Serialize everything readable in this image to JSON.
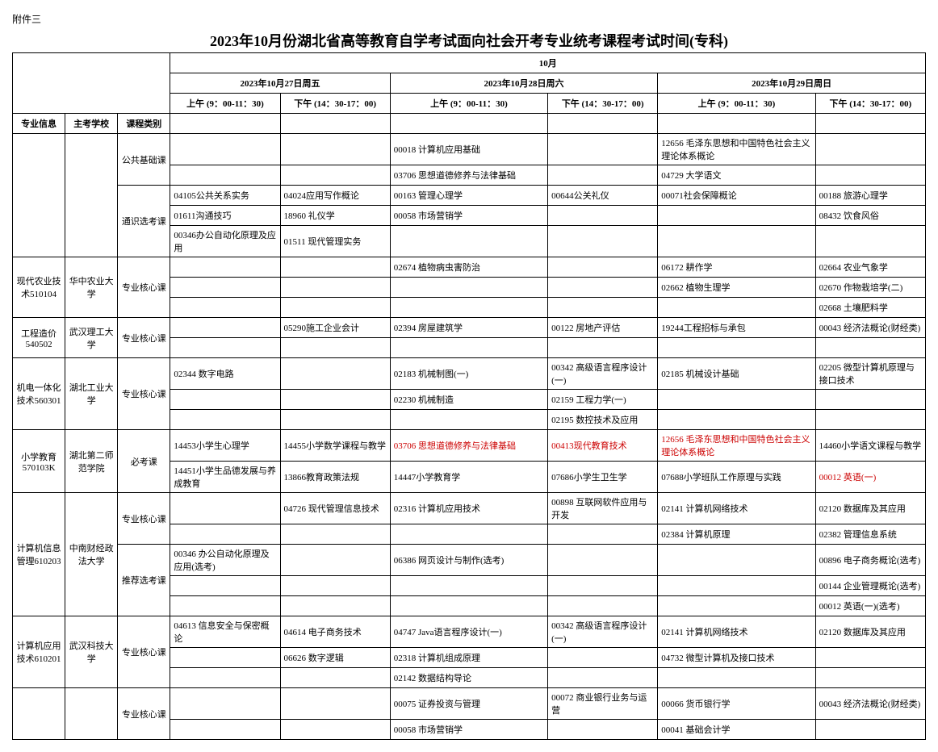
{
  "attachment_label": "附件三",
  "title": "2023年10月份湖北省高等教育自学考试面向社会开考专业统考课程考试时间(专科)",
  "month_header": "10月",
  "col_headers": {
    "major_info": "专业信息",
    "school": "主考学校",
    "course_type": "课程类别",
    "day1": "2023年10月27日周五",
    "day2": "2023年10月28日周六",
    "day3": "2023年10月29日周日",
    "am": "上午 (9：00-11：30)",
    "pm": "下午 (14：30-17：00)"
  },
  "course_types": {
    "public_basic": "公共基础课",
    "general_elective": "通识选考课",
    "major_core": "专业核心课",
    "required": "必考课",
    "rec_elective": "推荐选考课"
  },
  "majors": {
    "agri": {
      "code": "现代农业技术510104",
      "school": "华中农业大学"
    },
    "cost": {
      "code": "工程造价540502",
      "school": "武汉理工大学"
    },
    "mech": {
      "code": "机电一体化技术560301",
      "school": "湖北工业大学"
    },
    "edu": {
      "code": "小学教育570103K",
      "school": "湖北第二师范学院"
    },
    "info": {
      "code": "计算机信息管理610203",
      "school": "中南财经政法大学"
    },
    "app": {
      "code": "计算机应用技术610201",
      "school": "武汉科技大学"
    }
  },
  "public_rows": [
    {
      "c3": "00018 计算机应用基础",
      "c5": "12656 毛泽东思想和中国特色社会主义理论体系概论"
    },
    {
      "c3": "03706 思想道德修养与法律基础",
      "c5": "04729 大学语文"
    }
  ],
  "general_rows": [
    {
      "c1": "04105公共关系实务",
      "c2": "04024应用写作概论",
      "c3": "00163 管理心理学",
      "c4": "00644公关礼仪",
      "c5": "00071社会保障概论",
      "c6": "00188 旅游心理学"
    },
    {
      "c1": "01611沟通技巧",
      "c2": "18960 礼仪学",
      "c3": "00058 市场营销学",
      "c6": "08432 饮食风俗"
    },
    {
      "c1": "00346办公自动化原理及应用",
      "c2": "01511 现代管理实务"
    }
  ],
  "agri_rows": [
    {
      "c3": "02674 植物病虫害防治",
      "c5": "06172 耕作学",
      "c6": "02664 农业气象学"
    },
    {
      "c5": "02662 植物生理学",
      "c6": "02670 作物栽培学(二)"
    },
    {
      "c6": "02668 土壤肥料学"
    }
  ],
  "cost_rows": [
    {
      "c2": "05290施工企业会计",
      "c3": "02394 房屋建筑学",
      "c4": "00122 房地产评估",
      "c5": "19244工程招标与承包",
      "c6": "00043 经济法概论(财经类)"
    },
    {}
  ],
  "mech_rows": [
    {
      "c1": "02344 数字电路",
      "c3": "02183 机械制图(一)",
      "c4": "00342 高级语言程序设计(一)",
      "c5": "02185 机械设计基础",
      "c6": "02205 微型计算机原理与接口技术"
    },
    {
      "c3": "02230 机械制造",
      "c4": "02159 工程力学(一)"
    },
    {
      "c4": "02195 数控技术及应用"
    }
  ],
  "edu_rows": [
    {
      "c1": "14453小学生心理学",
      "c2": "14455小学数学课程与教学",
      "c3": "03706 思想道德修养与法律基础",
      "c3_red": true,
      "c4": "00413现代教育技术",
      "c4_red": true,
      "c5": "12656 毛泽东思想和中国特色社会主义理论体系概论",
      "c5_red": true,
      "c6": "14460小学语文课程与教学"
    },
    {
      "c1": "14451小学生品德发展与养成教育",
      "c2": "13866教育政策法规",
      "c3": "14447小学教育学",
      "c4": "07686小学生卫生学",
      "c5": "07688小学班队工作原理与实践",
      "c6": "00012 英语(一)",
      "c6_red": true
    }
  ],
  "info_core_rows": [
    {
      "c2": "04726 现代管理信息技术",
      "c3": "02316 计算机应用技术",
      "c4": "00898 互联网软件应用与开发",
      "c5": "02141 计算机网络技术",
      "c6": "02120 数据库及其应用"
    },
    {
      "c5": "02384 计算机原理",
      "c6": "02382 管理信息系统"
    }
  ],
  "info_elec_rows": [
    {
      "c1": "00346 办公自动化原理及应用(选考)",
      "c3": "06386 网页设计与制作(选考)",
      "c6": "00896 电子商务概论(选考)"
    },
    {
      "c6": "00144 企业管理概论(选考)"
    },
    {
      "c6": "00012 英语(一)(选考)"
    }
  ],
  "app_rows": [
    {
      "c1": "04613 信息安全与保密概论",
      "c2": "04614 电子商务技术",
      "c3": "04747 Java语言程序设计(一)",
      "c4": "00342 高级语言程序设计(一)",
      "c5": "02141 计算机网络技术",
      "c6": "02120 数据库及其应用"
    },
    {
      "c2": "06626 数字逻辑",
      "c3": "02318 计算机组成原理",
      "c5": "04732 微型计算机及接口技术"
    },
    {
      "c3": "02142 数据结构导论"
    }
  ],
  "last_rows": [
    {
      "c3": "00075 证券投资与管理",
      "c4": "00072 商业银行业务与运营",
      "c5": "00066 货币银行学",
      "c6": "00043 经济法概论(财经类)"
    },
    {
      "c3": "00058 市场营销学",
      "c5": "00041 基础会计学"
    }
  ]
}
